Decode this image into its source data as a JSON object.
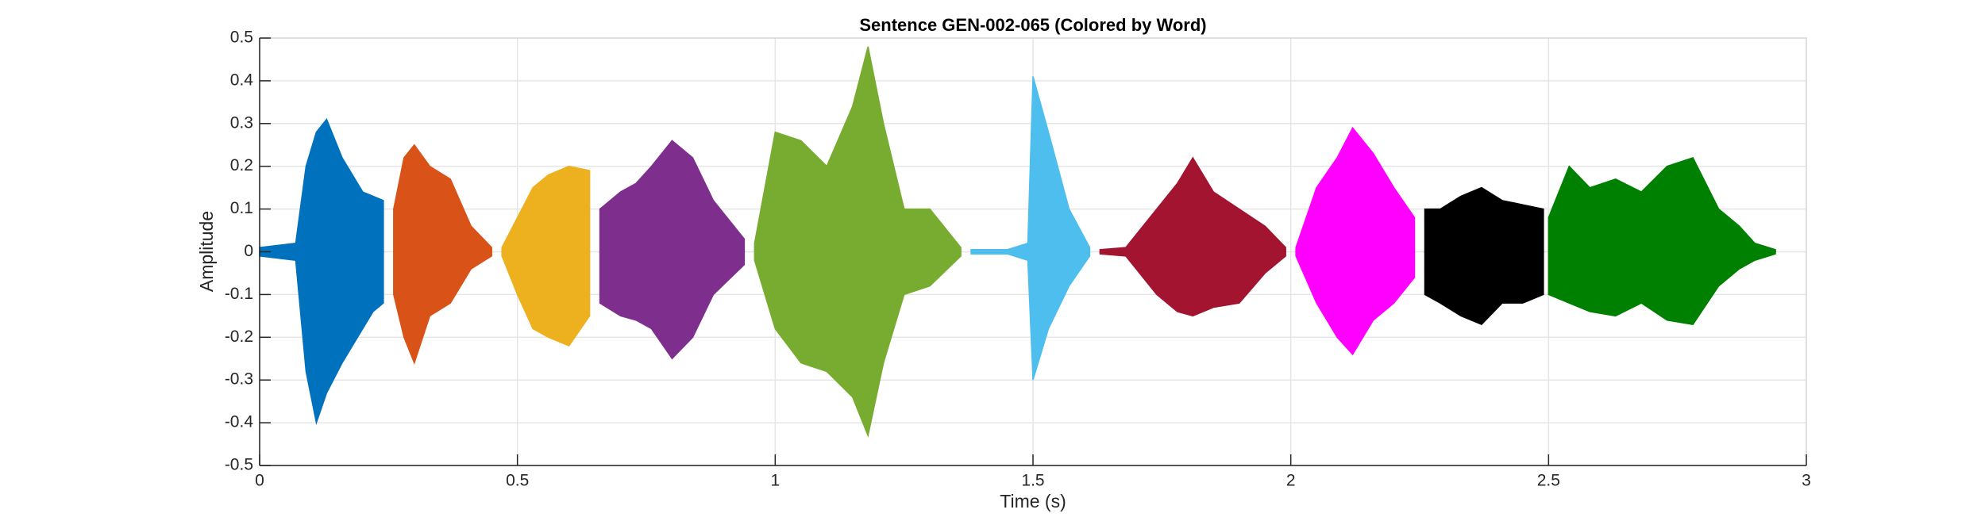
{
  "chart_data": {
    "type": "waveform",
    "title": "Sentence GEN-002-065 (Colored by Word)",
    "x_label": "Time (s)",
    "y_label": "Amplitude",
    "xlim": [
      0,
      3
    ],
    "xticks": [
      0,
      0.5,
      1,
      1.5,
      2,
      2.5,
      3
    ],
    "ylim": [
      -0.5,
      0.5
    ],
    "yticks": [
      -0.5,
      -0.4,
      -0.3,
      -0.2,
      -0.1,
      0,
      0.1,
      0.2,
      0.3,
      0.4,
      0.5
    ],
    "grid": true,
    "series": [
      {
        "color": "#0072BD",
        "x": [
          0,
          0.07,
          0.09,
          0.11,
          0.13,
          0.16,
          0.2,
          0.22,
          0.24
        ],
        "upper": [
          0.01,
          0.02,
          0.2,
          0.28,
          0.31,
          0.22,
          0.14,
          0.13,
          0.12
        ],
        "lower": [
          -0.01,
          -0.02,
          -0.28,
          -0.4,
          -0.33,
          -0.26,
          -0.18,
          -0.14,
          -0.12
        ]
      },
      {
        "color": "#D95319",
        "x": [
          0.26,
          0.28,
          0.3,
          0.33,
          0.37,
          0.41,
          0.45
        ],
        "upper": [
          0.1,
          0.22,
          0.25,
          0.2,
          0.17,
          0.06,
          0.01
        ],
        "lower": [
          -0.1,
          -0.2,
          -0.26,
          -0.15,
          -0.12,
          -0.04,
          -0.01
        ]
      },
      {
        "color": "#EDB120",
        "x": [
          0.47,
          0.5,
          0.53,
          0.56,
          0.6,
          0.64
        ],
        "upper": [
          0.01,
          0.08,
          0.15,
          0.18,
          0.2,
          0.19
        ],
        "lower": [
          -0.01,
          -0.1,
          -0.18,
          -0.2,
          -0.22,
          -0.15
        ]
      },
      {
        "color": "#7E2F8E",
        "x": [
          0.66,
          0.7,
          0.73,
          0.76,
          0.8,
          0.84,
          0.88,
          0.94
        ],
        "upper": [
          0.1,
          0.14,
          0.16,
          0.2,
          0.26,
          0.22,
          0.12,
          0.03
        ],
        "lower": [
          -0.12,
          -0.15,
          -0.16,
          -0.18,
          -0.25,
          -0.2,
          -0.1,
          -0.03
        ]
      },
      {
        "color": "#77AC30",
        "x": [
          0.96,
          1.0,
          1.05,
          1.1,
          1.15,
          1.18,
          1.21,
          1.25,
          1.3,
          1.36
        ],
        "upper": [
          0.02,
          0.28,
          0.26,
          0.2,
          0.34,
          0.48,
          0.3,
          0.1,
          0.1,
          0.01
        ],
        "lower": [
          -0.02,
          -0.18,
          -0.26,
          -0.28,
          -0.34,
          -0.43,
          -0.26,
          -0.1,
          -0.08,
          -0.01
        ]
      },
      {
        "color": "#4DBEEE",
        "x": [
          1.38,
          1.45,
          1.49,
          1.5,
          1.53,
          1.57,
          1.61
        ],
        "upper": [
          0.005,
          0.005,
          0.02,
          0.41,
          0.28,
          0.1,
          0.01
        ],
        "lower": [
          -0.005,
          -0.005,
          -0.02,
          -0.3,
          -0.18,
          -0.08,
          -0.01
        ]
      },
      {
        "color": "#A2142F",
        "x": [
          1.63,
          1.68,
          1.74,
          1.78,
          1.81,
          1.85,
          1.9,
          1.95,
          1.99
        ],
        "upper": [
          0.005,
          0.01,
          0.1,
          0.16,
          0.22,
          0.14,
          0.1,
          0.06,
          0.01
        ],
        "lower": [
          -0.005,
          -0.01,
          -0.1,
          -0.14,
          -0.15,
          -0.13,
          -0.12,
          -0.05,
          -0.01
        ]
      },
      {
        "color": "#FF00FF",
        "x": [
          2.01,
          2.05,
          2.09,
          2.12,
          2.16,
          2.2,
          2.24
        ],
        "upper": [
          0.01,
          0.15,
          0.22,
          0.29,
          0.23,
          0.15,
          0.08
        ],
        "lower": [
          -0.01,
          -0.12,
          -0.2,
          -0.24,
          -0.16,
          -0.12,
          -0.06
        ]
      },
      {
        "color": "#000000",
        "x": [
          2.26,
          2.29,
          2.33,
          2.37,
          2.41,
          2.45,
          2.49
        ],
        "upper": [
          0.1,
          0.1,
          0.13,
          0.15,
          0.12,
          0.11,
          0.1
        ],
        "lower": [
          -0.1,
          -0.12,
          -0.15,
          -0.17,
          -0.12,
          -0.12,
          -0.1
        ]
      },
      {
        "color": "#008000",
        "x": [
          2.5,
          2.54,
          2.58,
          2.63,
          2.68,
          2.73,
          2.78,
          2.83,
          2.87,
          2.9,
          2.94
        ],
        "upper": [
          0.08,
          0.2,
          0.15,
          0.17,
          0.14,
          0.2,
          0.22,
          0.1,
          0.06,
          0.02,
          0.005
        ],
        "lower": [
          -0.1,
          -0.12,
          -0.14,
          -0.15,
          -0.12,
          -0.16,
          -0.17,
          -0.08,
          -0.04,
          -0.02,
          -0.005
        ]
      }
    ]
  }
}
